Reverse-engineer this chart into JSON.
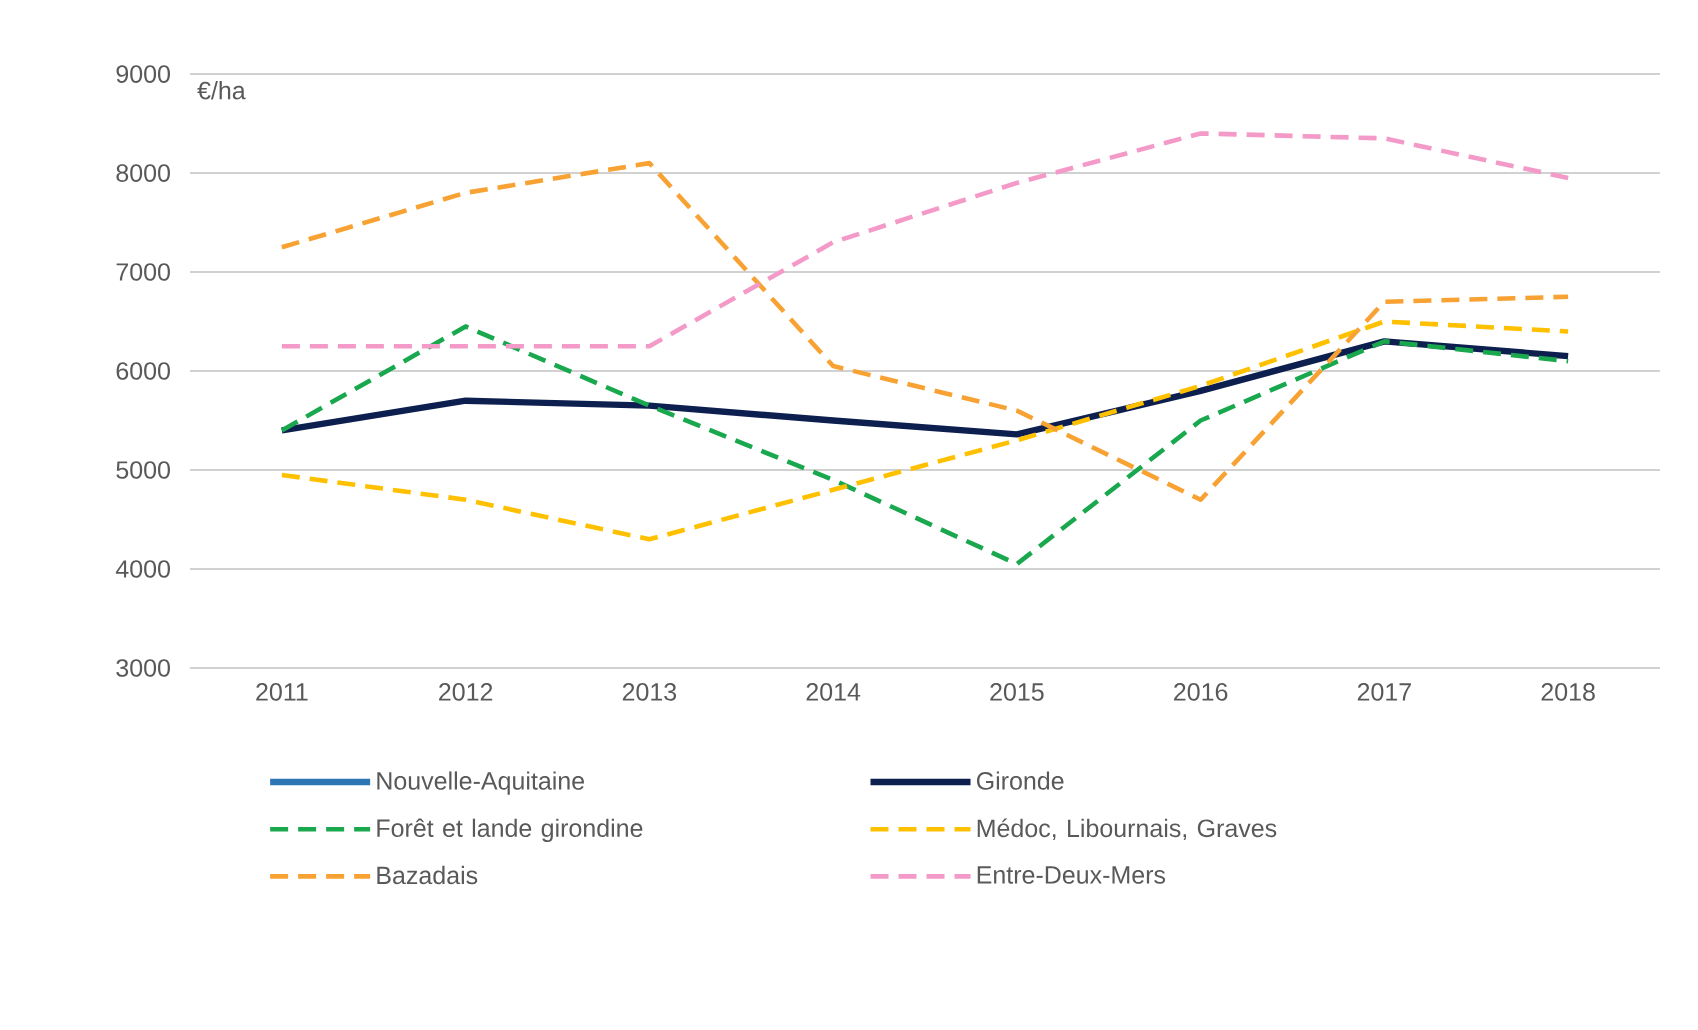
{
  "chart_data": {
    "type": "line",
    "ylabel": "€/ha",
    "categories": [
      "2011",
      "2012",
      "2013",
      "2014",
      "2015",
      "2016",
      "2017",
      "2018"
    ],
    "ylim": [
      3000,
      9000
    ],
    "yticks": [
      3000,
      4000,
      5000,
      6000,
      7000,
      8000,
      9000
    ],
    "grid": "y",
    "legend": "bottom",
    "series": [
      {
        "name": "Nouvelle-Aquitaine",
        "color": "#2e75b6",
        "line_style": "solid",
        "values": [
          null,
          null,
          null,
          null,
          null,
          null,
          null,
          null
        ]
      },
      {
        "name": "Gironde",
        "color": "#0d1f4f",
        "line_style": "solid",
        "values": [
          5400,
          5700,
          5650,
          5500,
          5360,
          5800,
          6300,
          6150
        ]
      },
      {
        "name": "Forêt et lande girondine",
        "color": "#1aa84f",
        "line_style": "dashed",
        "values": [
          5400,
          6450,
          5650,
          4900,
          4050,
          5500,
          6300,
          6100
        ]
      },
      {
        "name": "Médoc, Libournais, Graves",
        "color": "#ffc000",
        "line_style": "dashed",
        "values": [
          4950,
          4700,
          4300,
          4800,
          5300,
          5850,
          6500,
          6400
        ]
      },
      {
        "name": "Bazadais",
        "color": "#f7a233",
        "line_style": "dashed",
        "values": [
          7250,
          7800,
          8100,
          6050,
          5600,
          4700,
          6700,
          6750
        ]
      },
      {
        "name": "Entre-Deux-Mers",
        "color": "#f49ac8",
        "line_style": "dashed",
        "values": [
          6250,
          6250,
          6250,
          7300,
          7900,
          8400,
          8350,
          7950
        ]
      }
    ]
  }
}
